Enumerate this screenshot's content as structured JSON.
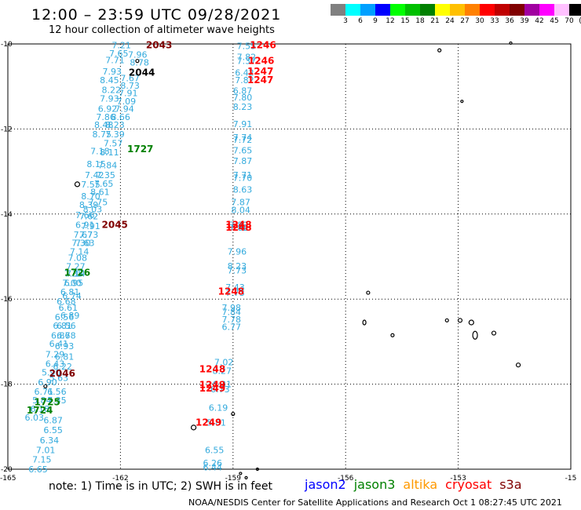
{
  "title": "12:00 – 23:59 UTC 09/28/2021",
  "subtitle": "12 hour collection of altimeter wave heights",
  "note": "note: 1) Time is in UTC; 2) SWH is in feet",
  "credit": "NOAA/NESDIS Center for Satellite Applications and Research   Oct  1 08:27:45 UTC 2021",
  "color_scale": {
    "labels": [
      "3",
      "6",
      "9",
      "12",
      "15",
      "18",
      "21",
      "24",
      "27",
      "30",
      "33",
      "36",
      "39",
      "42",
      "45",
      "70",
      "(ft)"
    ],
    "colors": [
      "#808080",
      "#00ffff",
      "#00a0ff",
      "#0000ff",
      "#00ff00",
      "#00c000",
      "#008000",
      "#ffff00",
      "#ffc000",
      "#ff8000",
      "#ff0000",
      "#c00000",
      "#800000",
      "#a000a0",
      "#ff00ff",
      "#ffc0ff",
      "#000000"
    ]
  },
  "legend": [
    {
      "name": "jason2",
      "color": "#0000ff"
    },
    {
      "name": "jason3",
      "color": "#008000"
    },
    {
      "name": "altika",
      "color": "#ff9900"
    },
    {
      "name": "cryosat",
      "color": "#ff0000"
    },
    {
      "name": "s3a",
      "color": "#800000"
    }
  ],
  "axes": {
    "lon_ticks": [
      "-165",
      "-162",
      "-159",
      "-156",
      "-153",
      "-15"
    ],
    "lat_ticks": [
      "-10",
      "-12",
      "-14",
      "-16",
      "-18",
      "-20"
    ]
  },
  "swh_color": "#33aadd",
  "tracks": [
    {
      "name": "track-A",
      "time_labels": [
        {
          "text": "2043",
          "color": "#800000",
          "lon": -161.32,
          "lat": -10.03
        },
        {
          "text": "2044",
          "color": "#000000",
          "lon": -161.78,
          "lat": -10.67
        },
        {
          "text": "1727",
          "color": "#008000",
          "lon": -161.82,
          "lat": -12.47
        },
        {
          "text": "2045",
          "color": "#800000",
          "lon": -162.5,
          "lat": -14.25
        },
        {
          "text": "1726",
          "color": "#008000",
          "lon": -163.5,
          "lat": -15.38
        },
        {
          "text": "2046",
          "color": "#800000",
          "lon": -163.9,
          "lat": -17.75
        },
        {
          "text": "1725",
          "color": "#008000",
          "lon": -164.3,
          "lat": -18.42
        },
        {
          "text": "1724",
          "color": "#008000",
          "lon": -164.5,
          "lat": -18.62
        }
      ],
      "swh": [
        {
          "v": "7.21",
          "lon": -162.23,
          "lat": -10.03
        },
        {
          "v": "7.65",
          "lon": -162.3,
          "lat": -10.22
        },
        {
          "v": "7.96",
          "lon": -161.8,
          "lat": -10.25
        },
        {
          "v": "7.71",
          "lon": -162.4,
          "lat": -10.38
        },
        {
          "v": "8.78",
          "lon": -161.75,
          "lat": -10.43
        },
        {
          "v": "7.93",
          "lon": -162.48,
          "lat": -10.65
        },
        {
          "v": "8.45",
          "lon": -162.55,
          "lat": -10.85
        },
        {
          "v": "7.67",
          "lon": -162.0,
          "lat": -10.8
        },
        {
          "v": "8.73",
          "lon": -162.0,
          "lat": -10.98
        },
        {
          "v": "8.22",
          "lon": -162.5,
          "lat": -11.08
        },
        {
          "v": "7.91",
          "lon": -162.05,
          "lat": -11.15
        },
        {
          "v": "7.93",
          "lon": -162.55,
          "lat": -11.28
        },
        {
          "v": "7.09",
          "lon": -162.1,
          "lat": -11.35
        },
        {
          "v": "6.92",
          "lon": -162.6,
          "lat": -11.52
        },
        {
          "v": "7.94",
          "lon": -162.15,
          "lat": -11.52
        },
        {
          "v": "7.86",
          "lon": -162.65,
          "lat": -11.72
        },
        {
          "v": "8.66",
          "lon": -162.25,
          "lat": -11.72
        },
        {
          "v": "8.48",
          "lon": -162.7,
          "lat": -11.9
        },
        {
          "v": "8.23",
          "lon": -162.4,
          "lat": -11.9
        },
        {
          "v": "8.75",
          "lon": -162.75,
          "lat": -12.12
        },
        {
          "v": "7.39",
          "lon": -162.4,
          "lat": -12.12
        },
        {
          "v": "7.57",
          "lon": -162.45,
          "lat": -12.33
        },
        {
          "v": "7.18",
          "lon": -162.8,
          "lat": -12.52
        },
        {
          "v": "8.11",
          "lon": -162.55,
          "lat": -12.55
        },
        {
          "v": "8.15",
          "lon": -162.9,
          "lat": -12.82
        },
        {
          "v": "7.84",
          "lon": -162.6,
          "lat": -12.85
        },
        {
          "v": "7.42",
          "lon": -162.95,
          "lat": -13.08
        },
        {
          "v": "7.35",
          "lon": -162.65,
          "lat": -13.08
        },
        {
          "v": "7.55",
          "lon": -163.05,
          "lat": -13.3
        },
        {
          "v": "7.65",
          "lon": -162.7,
          "lat": -13.28
        },
        {
          "v": "8.61",
          "lon": -162.8,
          "lat": -13.48
        },
        {
          "v": "8.70",
          "lon": -163.05,
          "lat": -13.58
        },
        {
          "v": "7.75",
          "lon": -162.85,
          "lat": -13.72
        },
        {
          "v": "8.39",
          "lon": -163.1,
          "lat": -13.78
        },
        {
          "v": "8.03",
          "lon": -163.0,
          "lat": -13.88
        },
        {
          "v": "7.66",
          "lon": -163.2,
          "lat": -14.02
        },
        {
          "v": "7.62",
          "lon": -163.1,
          "lat": -14.05
        },
        {
          "v": "6.91",
          "lon": -163.2,
          "lat": -14.25
        },
        {
          "v": "7.91",
          "lon": -163.05,
          "lat": -14.28
        },
        {
          "v": "7.67",
          "lon": -163.25,
          "lat": -14.48
        },
        {
          "v": "7.73",
          "lon": -163.1,
          "lat": -14.48
        },
        {
          "v": "7.63",
          "lon": -163.2,
          "lat": -14.68
        },
        {
          "v": "7.30",
          "lon": -163.3,
          "lat": -14.68
        },
        {
          "v": "7.14",
          "lon": -163.35,
          "lat": -14.88
        },
        {
          "v": "7.08",
          "lon": -163.4,
          "lat": -15.03
        },
        {
          "v": "7.27",
          "lon": -163.45,
          "lat": -15.23
        },
        {
          "v": "7.35",
          "lon": -163.5,
          "lat": -15.4
        },
        {
          "v": "7.14",
          "lon": -163.45,
          "lat": -15.4
        },
        {
          "v": "7.00",
          "lon": -163.55,
          "lat": -15.62
        },
        {
          "v": "6.95",
          "lon": -163.5,
          "lat": -15.62
        },
        {
          "v": "6.81",
          "lon": -163.6,
          "lat": -15.83
        },
        {
          "v": "6.74",
          "lon": -163.55,
          "lat": -15.92
        },
        {
          "v": "6.68",
          "lon": -163.7,
          "lat": -16.05
        },
        {
          "v": "6.61",
          "lon": -163.65,
          "lat": -16.2
        },
        {
          "v": "6.89",
          "lon": -163.6,
          "lat": -16.38
        },
        {
          "v": "6.56",
          "lon": -163.75,
          "lat": -16.42
        },
        {
          "v": "6.81",
          "lon": -163.8,
          "lat": -16.62
        },
        {
          "v": "6.56",
          "lon": -163.7,
          "lat": -16.62
        },
        {
          "v": "6.86",
          "lon": -163.85,
          "lat": -16.85
        },
        {
          "v": "6.78",
          "lon": -163.7,
          "lat": -16.85
        },
        {
          "v": "6.41",
          "lon": -163.9,
          "lat": -17.05
        },
        {
          "v": "6.93",
          "lon": -163.75,
          "lat": -17.1
        },
        {
          "v": "7.29",
          "lon": -164.0,
          "lat": -17.3
        },
        {
          "v": "6.81",
          "lon": -163.75,
          "lat": -17.35
        },
        {
          "v": "6.43",
          "lon": -164.0,
          "lat": -17.52
        },
        {
          "v": "6.22",
          "lon": -163.8,
          "lat": -17.58
        },
        {
          "v": "5.90",
          "lon": -164.1,
          "lat": -17.72
        },
        {
          "v": "6.90",
          "lon": -164.2,
          "lat": -17.95
        },
        {
          "v": "5.63",
          "lon": -163.9,
          "lat": -17.85
        },
        {
          "v": "6.71",
          "lon": -164.3,
          "lat": -18.17
        },
        {
          "v": "6.56",
          "lon": -163.95,
          "lat": -18.17
        },
        {
          "v": "5.84",
          "lon": -164.35,
          "lat": -18.38
        },
        {
          "v": "7.35",
          "lon": -163.95,
          "lat": -18.38
        },
        {
          "v": "6.18",
          "lon": -164.4,
          "lat": -18.58
        },
        {
          "v": "6.03",
          "lon": -164.55,
          "lat": -18.78
        },
        {
          "v": "6.87",
          "lon": -164.05,
          "lat": -18.85
        },
        {
          "v": "6.55",
          "lon": -164.05,
          "lat": -19.08
        },
        {
          "v": "6.34",
          "lon": -164.15,
          "lat": -19.32
        },
        {
          "v": "7.01",
          "lon": -164.25,
          "lat": -19.55
        },
        {
          "v": "7.15",
          "lon": -164.35,
          "lat": -19.77
        },
        {
          "v": "6.65",
          "lon": -164.45,
          "lat": -20.0
        }
      ]
    },
    {
      "name": "track-B",
      "time_labels": [
        {
          "text": "1246",
          "color": "#ff0000",
          "lon": -158.55,
          "lat": -10.03
        },
        {
          "text": "1246",
          "color": "#ff0000",
          "lon": -158.6,
          "lat": -10.4
        },
        {
          "text": "1247",
          "color": "#ff0000",
          "lon": -158.62,
          "lat": -10.65
        },
        {
          "text": "1247",
          "color": "#ff0000",
          "lon": -158.62,
          "lat": -10.85
        },
        {
          "text": "1248",
          "color": "#ff0000",
          "lon": -159.2,
          "lat": -14.25
        },
        {
          "text": "1248",
          "color": "#ff0000",
          "lon": -159.2,
          "lat": -14.32
        },
        {
          "text": "1248",
          "color": "#ff0000",
          "lon": -159.4,
          "lat": -15.82
        },
        {
          "text": "1248",
          "color": "#ff0000",
          "lon": -159.9,
          "lat": -17.65
        },
        {
          "text": "1249",
          "color": "#ff0000",
          "lon": -159.9,
          "lat": -18.02
        },
        {
          "text": "1249",
          "color": "#ff0000",
          "lon": -159.9,
          "lat": -18.1
        },
        {
          "text": "1249",
          "color": "#ff0000",
          "lon": -160.0,
          "lat": -18.9
        }
      ],
      "swh": [
        {
          "v": "7.55",
          "lon": -158.9,
          "lat": -10.05
        },
        {
          "v": "7.82",
          "lon": -158.9,
          "lat": -10.3
        },
        {
          "v": "7.37",
          "lon": -158.9,
          "lat": -10.4
        },
        {
          "v": "6.42",
          "lon": -158.95,
          "lat": -10.67
        },
        {
          "v": "7.82",
          "lon": -158.95,
          "lat": -10.85
        },
        {
          "v": "6.87",
          "lon": -159.0,
          "lat": -11.1
        },
        {
          "v": "7.80",
          "lon": -159.0,
          "lat": -11.25
        },
        {
          "v": "8.23",
          "lon": -159.0,
          "lat": -11.48
        },
        {
          "v": "7.91",
          "lon": -159.0,
          "lat": -11.88
        },
        {
          "v": "7.74",
          "lon": -159.0,
          "lat": -12.2
        },
        {
          "v": "7.72",
          "lon": -159.0,
          "lat": -12.25
        },
        {
          "v": "7.65",
          "lon": -159.0,
          "lat": -12.5
        },
        {
          "v": "7.87",
          "lon": -159.0,
          "lat": -12.75
        },
        {
          "v": "7.71",
          "lon": -159.0,
          "lat": -13.08
        },
        {
          "v": "7.70",
          "lon": -159.0,
          "lat": -13.15
        },
        {
          "v": "8.63",
          "lon": -159.0,
          "lat": -13.42
        },
        {
          "v": "7.87",
          "lon": -159.05,
          "lat": -13.72
        },
        {
          "v": "8.04",
          "lon": -159.05,
          "lat": -13.9
        },
        {
          "v": "7.82",
          "lon": -159.1,
          "lat": -14.25
        },
        {
          "v": "7.82",
          "lon": -159.1,
          "lat": -14.32
        },
        {
          "v": "7.96",
          "lon": -159.15,
          "lat": -14.88
        },
        {
          "v": "8.23",
          "lon": -159.15,
          "lat": -15.22
        },
        {
          "v": "7.73",
          "lon": -159.15,
          "lat": -15.32
        },
        {
          "v": "7.43",
          "lon": -159.2,
          "lat": -15.72
        },
        {
          "v": "7.73",
          "lon": -159.2,
          "lat": -15.85
        },
        {
          "v": "7.98",
          "lon": -159.3,
          "lat": -16.2
        },
        {
          "v": "7.84",
          "lon": -159.3,
          "lat": -16.3
        },
        {
          "v": "7.78",
          "lon": -159.3,
          "lat": -16.48
        },
        {
          "v": "6.77",
          "lon": -159.3,
          "lat": -16.65
        },
        {
          "v": "7.02",
          "lon": -159.5,
          "lat": -17.48
        },
        {
          "v": "8.27",
          "lon": -159.55,
          "lat": -17.68
        },
        {
          "v": "6.31",
          "lon": -159.55,
          "lat": -18.0
        },
        {
          "v": "6.73",
          "lon": -159.6,
          "lat": -18.12
        },
        {
          "v": "6.19",
          "lon": -159.65,
          "lat": -18.55
        },
        {
          "v": "5.81",
          "lon": -159.7,
          "lat": -18.9
        },
        {
          "v": "6.55",
          "lon": -159.75,
          "lat": -19.55
        },
        {
          "v": "6.26",
          "lon": -159.8,
          "lat": -19.85
        },
        {
          "v": "6.44",
          "lon": -159.8,
          "lat": -19.95
        }
      ]
    }
  ],
  "islands": [
    {
      "lon": -161.55,
      "lat": -10.4,
      "rx": 2,
      "ry": 2
    },
    {
      "lon": -163.15,
      "lat": -13.3,
      "rx": 3,
      "ry": 3
    },
    {
      "lon": -164.0,
      "lat": -18.05,
      "rx": 2,
      "ry": 2
    },
    {
      "lon": -160.05,
      "lat": -19.02,
      "rx": 3,
      "ry": 3
    },
    {
      "lon": -159.0,
      "lat": -18.7,
      "rx": 2,
      "ry": 2
    },
    {
      "lon": -158.8,
      "lat": -20.1,
      "rx": 1.5,
      "ry": 1.5
    },
    {
      "lon": -158.35,
      "lat": -20.0,
      "rx": 1.5,
      "ry": 1.5
    },
    {
      "lon": -158.65,
      "lat": -20.2,
      "rx": 1.5,
      "ry": 1.5
    },
    {
      "lon": -153.5,
      "lat": -10.15,
      "rx": 2,
      "ry": 2
    },
    {
      "lon": -152.9,
      "lat": -11.35,
      "rx": 1.5,
      "ry": 1.5
    },
    {
      "lon": -151.6,
      "lat": -9.98,
      "rx": 1.5,
      "ry": 1.5
    },
    {
      "lon": -155.4,
      "lat": -15.85,
      "rx": 2,
      "ry": 2
    },
    {
      "lon": -155.5,
      "lat": -16.55,
      "rx": 2,
      "ry": 3
    },
    {
      "lon": -154.75,
      "lat": -16.85,
      "rx": 2,
      "ry": 2
    },
    {
      "lon": -153.3,
      "lat": -16.5,
      "rx": 2,
      "ry": 2
    },
    {
      "lon": -152.95,
      "lat": -16.5,
      "rx": 2.5,
      "ry": 2.5
    },
    {
      "lon": -152.65,
      "lat": -16.55,
      "rx": 3,
      "ry": 3
    },
    {
      "lon": -152.55,
      "lat": -16.85,
      "rx": 3,
      "ry": 5
    },
    {
      "lon": -152.05,
      "lat": -16.8,
      "rx": 2.5,
      "ry": 2.5
    },
    {
      "lon": -151.4,
      "lat": -17.55,
      "rx": 2.5,
      "ry": 2.5
    }
  ]
}
